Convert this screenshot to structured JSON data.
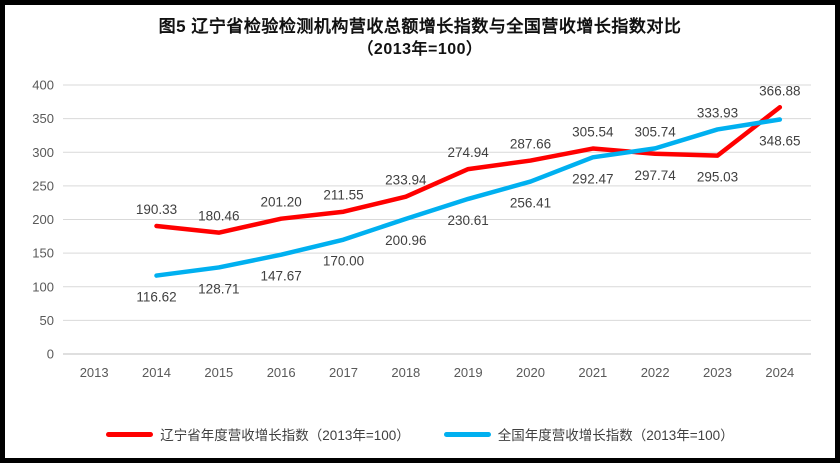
{
  "frame": {
    "border_color": "#000000",
    "background": "#ffffff"
  },
  "title": {
    "line1": "图5  辽宁省检验检测机构营收总额增长指数与全国营收增长指数对比",
    "line2": "（2013年=100）"
  },
  "chart_data": {
    "type": "line",
    "categories": [
      "2013",
      "2014",
      "2015",
      "2016",
      "2017",
      "2018",
      "2019",
      "2020",
      "2021",
      "2022",
      "2023",
      "2024"
    ],
    "series": [
      {
        "name": "辽宁省年度营收增长指数（2013年=100）",
        "color": "#FF0000",
        "values": [
          null,
          190.33,
          180.46,
          201.2,
          211.55,
          233.94,
          274.94,
          287.66,
          305.54,
          297.74,
          295.03,
          366.88
        ]
      },
      {
        "name": "全国年度营收增长指数（2013年=100）",
        "color": "#00B0F0",
        "values": [
          null,
          116.62,
          128.71,
          147.67,
          170.0,
          200.96,
          230.61,
          256.41,
          292.47,
          305.74,
          333.93,
          348.65
        ]
      }
    ],
    "title": "图5  辽宁省检验检测机构营收总额增长指数与全国营收增长指数对比（2013年=100）",
    "xlabel": "",
    "ylabel": "",
    "ylim": [
      0,
      400
    ],
    "ytick_step": 50,
    "grid": true,
    "data_labels": true,
    "legend_position": "bottom"
  },
  "axis_style": {
    "tick_label_color": "#595959",
    "grid_color": "#D9D9D9",
    "axis_line_color": "#BFBFBF",
    "data_label_color": "#404040"
  }
}
